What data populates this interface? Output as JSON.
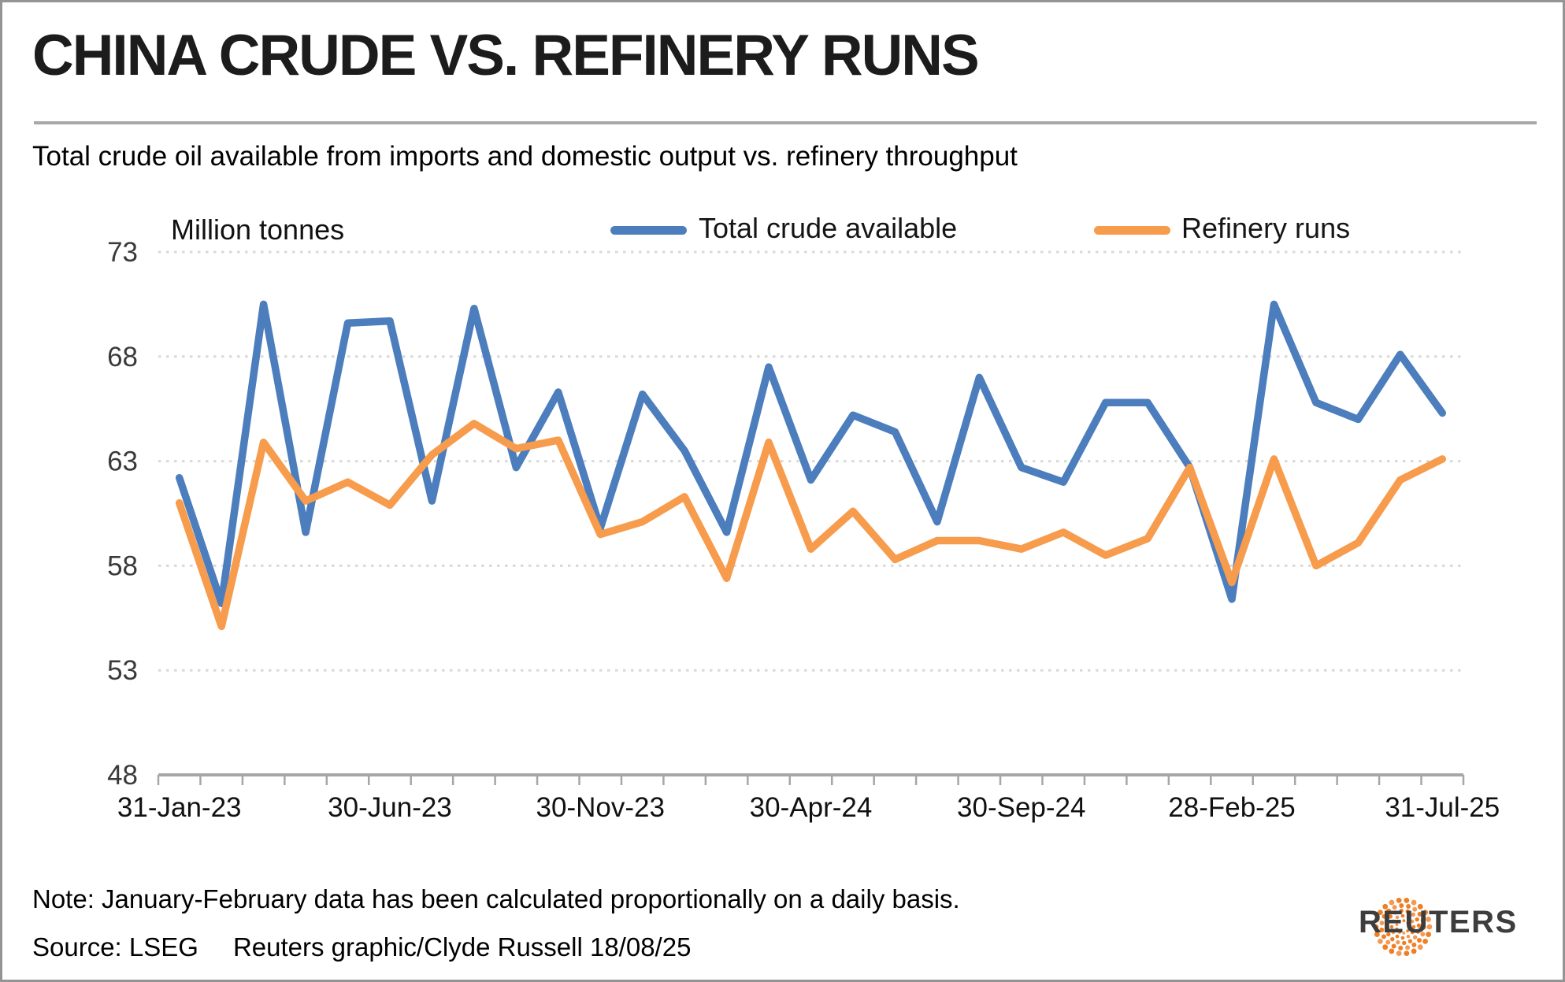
{
  "header": {
    "title": "CHINA CRUDE VS. REFINERY RUNS",
    "subtitle": "Total crude oil available from imports and domestic output vs. refinery throughput"
  },
  "chart_data": {
    "type": "line",
    "ylabel": "Million tonnes",
    "ylim": [
      48,
      73
    ],
    "yticks": [
      73,
      68,
      63,
      58,
      53,
      48
    ],
    "grid": "horizontal-dotted",
    "legend_position": "top",
    "axis_color": "#a6a6a6",
    "gridline_color": "#d9d9d9",
    "categories": [
      "31-Jan-23",
      "28-Feb-23",
      "31-Mar-23",
      "30-Apr-23",
      "31-May-23",
      "30-Jun-23",
      "31-Jul-23",
      "31-Aug-23",
      "30-Sep-23",
      "31-Oct-23",
      "30-Nov-23",
      "31-Dec-23",
      "31-Jan-24",
      "29-Feb-24",
      "31-Mar-24",
      "30-Apr-24",
      "31-May-24",
      "30-Jun-24",
      "31-Jul-24",
      "31-Aug-24",
      "30-Sep-24",
      "31-Oct-24",
      "30-Nov-24",
      "31-Dec-24",
      "31-Jan-25",
      "28-Feb-25",
      "31-Mar-25",
      "30-Apr-25",
      "31-May-25",
      "30-Jun-25",
      "31-Jul-25"
    ],
    "x_tick_labels": [
      {
        "index": 0,
        "label": "31-Jan-23"
      },
      {
        "index": 5,
        "label": "30-Jun-23"
      },
      {
        "index": 10,
        "label": "30-Nov-23"
      },
      {
        "index": 15,
        "label": "30-Apr-24"
      },
      {
        "index": 20,
        "label": "30-Sep-24"
      },
      {
        "index": 25,
        "label": "28-Feb-25"
      },
      {
        "index": 30,
        "label": "31-Jul-25"
      }
    ],
    "series": [
      {
        "name": "Total crude available",
        "color": "#4c7dbd",
        "values": [
          62.2,
          56.2,
          70.5,
          59.6,
          69.6,
          69.7,
          61.1,
          70.3,
          62.7,
          66.3,
          59.8,
          66.2,
          63.5,
          59.6,
          67.5,
          62.1,
          65.2,
          64.4,
          60.1,
          67.0,
          62.7,
          62.0,
          65.8,
          65.8,
          62.7,
          56.4,
          70.5,
          65.8,
          65.0,
          68.1,
          65.3
        ]
      },
      {
        "name": "Refinery runs",
        "color": "#f79b4c",
        "values": [
          61.0,
          55.1,
          63.9,
          61.1,
          62.0,
          60.9,
          63.3,
          64.8,
          63.6,
          64.0,
          59.5,
          60.1,
          61.3,
          57.4,
          63.9,
          58.8,
          60.6,
          58.3,
          59.2,
          59.2,
          58.8,
          59.6,
          58.5,
          59.3,
          62.7,
          57.2,
          63.1,
          58.0,
          59.1,
          62.1,
          63.1
        ]
      }
    ]
  },
  "footer": {
    "note": "Note: January-February data has been calculated proportionally on a daily basis.",
    "source": "Source: LSEG",
    "credit": "Reuters graphic/Clyde Russell 18/08/25",
    "logo_text": "REUTERS"
  }
}
